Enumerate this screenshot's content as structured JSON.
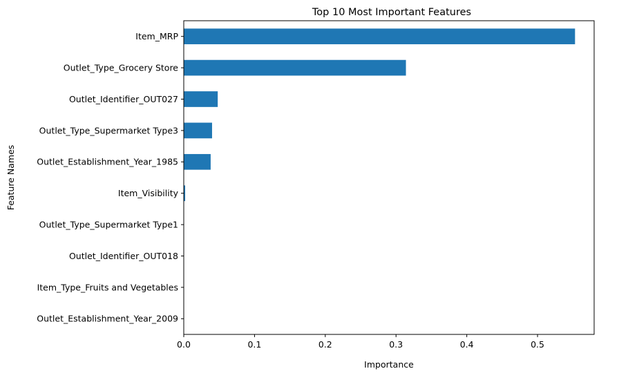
{
  "chart_data": {
    "type": "bar",
    "orientation": "horizontal",
    "title": "Top 10 Most Important Features",
    "xlabel": "Importance",
    "ylabel": "Feature Names",
    "categories": [
      "Item_MRP",
      "Outlet_Type_Grocery Store",
      "Outlet_Identifier_OUT027",
      "Outlet_Type_Supermarket Type3",
      "Outlet_Establishment_Year_1985",
      "Item_Visibility",
      "Outlet_Type_Supermarket Type1",
      "Outlet_Identifier_OUT018",
      "Item_Type_Fruits and Vegetables",
      "Outlet_Establishment_Year_2009"
    ],
    "values": [
      0.553,
      0.314,
      0.048,
      0.04,
      0.038,
      0.002,
      0.0,
      0.0,
      0.0,
      0.0
    ],
    "xlim": [
      0,
      0.58
    ],
    "xticks": [
      0,
      0.1,
      0.2,
      0.3,
      0.4,
      0.5
    ],
    "xtick_labels": [
      "0.0",
      "0.1",
      "0.2",
      "0.3",
      "0.4",
      "0.5"
    ],
    "bar_color": "#1f77b4",
    "grid": false,
    "legend": "none"
  }
}
